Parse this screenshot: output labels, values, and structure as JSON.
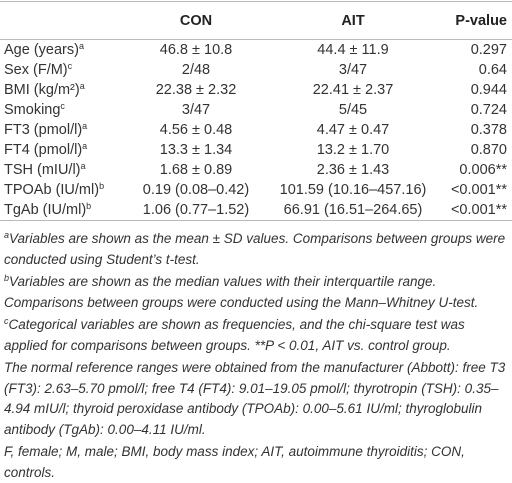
{
  "table": {
    "header": [
      "CON",
      "AIT",
      "P-value"
    ],
    "rows": [
      {
        "label": "Age (years)",
        "sup": "a",
        "con": "46.8 ± 10.8",
        "ait": "44.4 ± 11.9",
        "p": "0.297"
      },
      {
        "label": "Sex (F/M)",
        "sup": "c",
        "con": "2/48",
        "ait": "3/47",
        "p": "0.64"
      },
      {
        "label": "BMI (kg/m²)",
        "sup": "a",
        "con": "22.38 ± 2.32",
        "ait": "22.41 ± 2.37",
        "p": "0.944"
      },
      {
        "label": "Smoking",
        "sup": "c",
        "con": "3/47",
        "ait": "5/45",
        "p": "0.724"
      },
      {
        "label": "FT3 (pmol/l)",
        "sup": "a",
        "con": "4.56 ± 0.48",
        "ait": "4.47 ± 0.47",
        "p": "0.378"
      },
      {
        "label": "FT4 (pmol/l)",
        "sup": "a",
        "con": "13.3 ± 1.34",
        "ait": "13.2 ± 1.70",
        "p": "0.870"
      },
      {
        "label": "TSH (mIU/l)",
        "sup": "a",
        "con": "1.68 ± 0.89",
        "ait": "2.36 ± 1.43",
        "p": "0.006**"
      },
      {
        "label": "TPOAb (IU/ml)",
        "sup": "b",
        "con": "0.19 (0.08–0.42)",
        "ait": "101.59 (10.16–457.16)",
        "p": "<0.001**"
      },
      {
        "label": "TgAb (IU/ml)",
        "sup": "b",
        "con": "1.06 (0.77–1.52)",
        "ait": "66.91 (16.51–264.65)",
        "p": "<0.001**"
      }
    ]
  },
  "footnotes": [
    {
      "sup": "a",
      "text": "Variables are shown as the mean ± SD values. Comparisons between groups were conducted using Student’s t-test."
    },
    {
      "sup": "b",
      "text": "Variables are shown as the median values with their interquartile range. Comparisons between groups were conducted using the Mann–Whitney U-test."
    },
    {
      "sup": "c",
      "text": "Categorical variables are shown as frequencies, and the chi-square test was applied for comparisons between groups. **P < 0.01, AIT vs. control group."
    },
    {
      "text": "The normal reference ranges were obtained from the manufacturer (Abbott): free T3 (FT3): 2.63–5.70 pmol/l; free T4 (FT4): 9.01–19.05 pmol/l; thyrotropin (TSH): 0.35–4.94 mIU/l; thyroid peroxidase antibody (TPOAb): 0.00–5.61 IU/ml; thyroglobulin antibody (TgAb): 0.00–4.11 IU/ml."
    },
    {
      "text": "F, female; M, male; BMI, body mass index; AIT, autoimmune thyroiditis; CON, controls."
    }
  ]
}
